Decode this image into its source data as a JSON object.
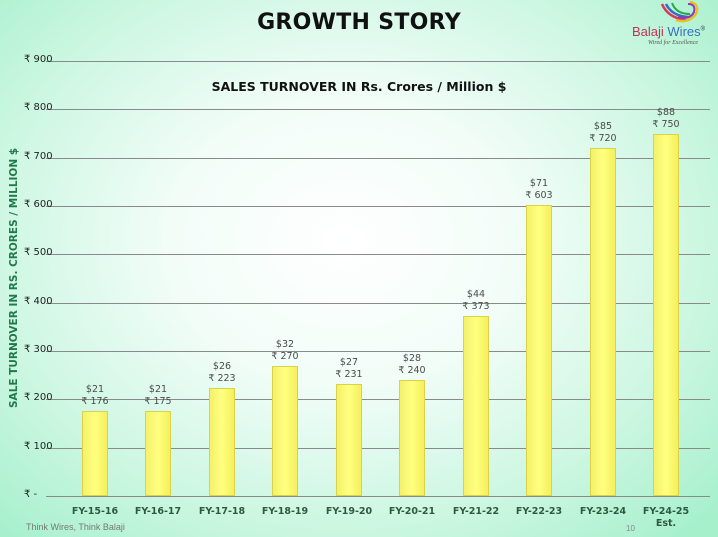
{
  "slide": {
    "title": "GROWTH STORY",
    "logo": {
      "name": "Balaji Wires",
      "name_part1": "Balaji",
      "name_part2": " Wires",
      "tagline": "Wired for Excellence",
      "trademark": "®"
    },
    "footer": "Think Wires, Think Balaji",
    "page_number": "10"
  },
  "chart_data": {
    "type": "bar",
    "title": "SALES TURNOVER IN Rs. Crores / Million $",
    "xlabel": "",
    "ylabel": "SALE TURNOVER IN RS. CRORES / MILLION  $",
    "categories": [
      "FY-15-16",
      "FY-16-17",
      "FY-17-18",
      "FY-18-19",
      "FY-19-20",
      "FY-20-21",
      "FY-21-22",
      "FY-22-23",
      "FY-23-24",
      "FY-24-25 Est."
    ],
    "category_lines": [
      [
        "FY-15-16",
        ""
      ],
      [
        "FY-16-17",
        ""
      ],
      [
        "FY-17-18",
        ""
      ],
      [
        "FY-18-19",
        ""
      ],
      [
        "FY-19-20",
        ""
      ],
      [
        "FY-20-21",
        ""
      ],
      [
        "FY-21-22",
        ""
      ],
      [
        "FY-22-23",
        ""
      ],
      [
        "FY-23-24",
        ""
      ],
      [
        "FY-24-25",
        "Est."
      ]
    ],
    "series": [
      {
        "name": "Sales Turnover (Rs. Crores)",
        "values": [
          176,
          175,
          223,
          270,
          231,
          240,
          373,
          603,
          720,
          750
        ],
        "labels": [
          "₹ 176",
          "₹ 175",
          "₹ 223",
          "₹ 270",
          "₹ 231",
          "₹ 240",
          "₹ 373",
          "₹ 603",
          "₹ 720",
          "₹ 750"
        ]
      },
      {
        "name": "Sales Turnover (Million $)",
        "values": [
          21,
          21,
          26,
          32,
          27,
          28,
          44,
          71,
          85,
          88
        ],
        "labels": [
          "$21",
          "$21",
          "$26",
          "$32",
          "$27",
          "$28",
          "$44",
          "$71",
          "$85",
          "$88"
        ]
      }
    ],
    "ylim": [
      0,
      900
    ],
    "yticks": [
      0,
      100,
      200,
      300,
      400,
      500,
      600,
      700,
      800,
      900
    ],
    "ytick_labels": [
      "₹ -",
      "₹ 100",
      "₹ 200",
      "₹ 300",
      "₹ 400",
      "₹ 500",
      "₹ 600",
      "₹ 700",
      "₹ 800",
      "₹ 900"
    ],
    "grid": true,
    "legend": "none",
    "colors": {
      "bar": "#FFFF6E",
      "bar_border": "#D9D24A",
      "gridline": "#8A8A8A",
      "axis_title": "#1F7A4A"
    }
  }
}
